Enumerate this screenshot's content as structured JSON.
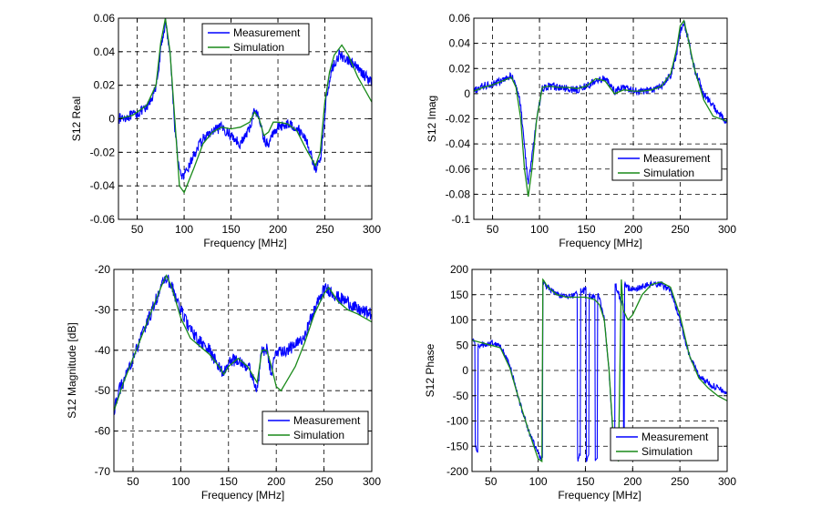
{
  "chart_data": [
    {
      "type": "line",
      "xlabel": "Frequency [MHz]",
      "ylabel": "S12 Real",
      "xlim": [
        30,
        300
      ],
      "ylim": [
        -0.06,
        0.06
      ],
      "xticks": [
        50,
        100,
        150,
        200,
        250,
        300
      ],
      "xtick_labels": [
        "50",
        "100",
        "150",
        "200",
        "250",
        "300"
      ],
      "yticks": [
        -0.06,
        -0.04,
        -0.02,
        0,
        0.02,
        0.04,
        0.06
      ],
      "ytick_labels": [
        "-0.06",
        "-0.04",
        "-0.02",
        "0",
        "0.02",
        "0.04",
        "0.06"
      ],
      "grid": true,
      "legend": "top-center",
      "series": [
        {
          "name": "Measurement",
          "color": "#0000ff",
          "noise": 0.003,
          "x": [
            30,
            45,
            60,
            70,
            75,
            80,
            85,
            90,
            95,
            100,
            110,
            120,
            130,
            140,
            150,
            160,
            170,
            175,
            180,
            185,
            190,
            195,
            200,
            210,
            220,
            230,
            240,
            245,
            248,
            252,
            258,
            265,
            275,
            285,
            300
          ],
          "y": [
            0.0,
            0.002,
            0.006,
            0.018,
            0.04,
            0.058,
            0.04,
            -0.005,
            -0.032,
            -0.035,
            -0.022,
            -0.012,
            -0.008,
            -0.005,
            -0.01,
            -0.015,
            -0.006,
            0.006,
            0.0,
            -0.012,
            -0.016,
            -0.008,
            -0.005,
            -0.003,
            -0.005,
            -0.012,
            -0.03,
            -0.025,
            -0.01,
            0.015,
            0.03,
            0.038,
            0.035,
            0.03,
            0.022
          ]
        },
        {
          "name": "Simulation",
          "color": "#1a8a1a",
          "x": [
            30,
            45,
            60,
            70,
            75,
            80,
            85,
            90,
            95,
            100,
            110,
            120,
            130,
            140,
            150,
            160,
            170,
            175,
            180,
            185,
            190,
            195,
            200,
            210,
            220,
            230,
            240,
            245,
            250,
            255,
            260,
            268,
            275,
            285,
            300
          ],
          "y": [
            0.0,
            0.002,
            0.008,
            0.02,
            0.045,
            0.06,
            0.04,
            0.0,
            -0.04,
            -0.044,
            -0.03,
            -0.015,
            -0.008,
            -0.005,
            -0.006,
            -0.005,
            -0.002,
            0.004,
            0.0,
            -0.01,
            -0.008,
            -0.002,
            -0.002,
            -0.003,
            -0.007,
            -0.018,
            -0.028,
            -0.02,
            0.01,
            0.028,
            0.038,
            0.044,
            0.038,
            0.025,
            0.01
          ]
        }
      ]
    },
    {
      "type": "line",
      "xlabel": "Frequency [MHz]",
      "ylabel": "S12 Imag",
      "xlim": [
        30,
        300
      ],
      "ylim": [
        -0.1,
        0.06
      ],
      "xticks": [
        50,
        100,
        150,
        200,
        250,
        300
      ],
      "xtick_labels": [
        "50",
        "100",
        "150",
        "200",
        "250",
        "300"
      ],
      "yticks": [
        -0.1,
        -0.08,
        -0.06,
        -0.04,
        -0.02,
        0,
        0.02,
        0.04,
        0.06
      ],
      "ytick_labels": [
        "-0.1",
        "-0.08",
        "-0.06",
        "-0.04",
        "-0.02",
        "0",
        "0.02",
        "0.04",
        "0.06"
      ],
      "grid": true,
      "legend": "bottom-right",
      "series": [
        {
          "name": "Measurement",
          "color": "#0000ff",
          "noise": 0.003,
          "x": [
            30,
            40,
            50,
            60,
            70,
            75,
            80,
            85,
            88,
            92,
            97,
            103,
            110,
            120,
            130,
            140,
            150,
            160,
            170,
            180,
            190,
            200,
            210,
            220,
            230,
            240,
            246,
            250,
            254,
            258,
            265,
            275,
            285,
            300
          ],
          "y": [
            0.002,
            0.006,
            0.008,
            0.01,
            0.014,
            0.008,
            -0.01,
            -0.05,
            -0.072,
            -0.05,
            -0.02,
            0.004,
            0.006,
            0.005,
            0.004,
            0.003,
            0.006,
            0.01,
            0.012,
            0.002,
            0.005,
            0.002,
            0.002,
            0.003,
            0.006,
            0.015,
            0.03,
            0.05,
            0.056,
            0.045,
            0.02,
            0.0,
            -0.01,
            -0.024
          ]
        },
        {
          "name": "Simulation",
          "color": "#1a8a1a",
          "x": [
            30,
            40,
            50,
            60,
            70,
            75,
            80,
            84,
            88,
            92,
            97,
            103,
            110,
            120,
            130,
            140,
            150,
            160,
            170,
            180,
            190,
            200,
            210,
            220,
            230,
            240,
            246,
            250,
            254,
            258,
            265,
            275,
            285,
            300
          ],
          "y": [
            0.002,
            0.005,
            0.007,
            0.01,
            0.013,
            0.005,
            -0.02,
            -0.06,
            -0.082,
            -0.06,
            -0.02,
            0.005,
            0.006,
            0.005,
            0.005,
            0.004,
            0.006,
            0.012,
            0.01,
            0.0,
            0.003,
            0.002,
            0.002,
            0.003,
            0.006,
            0.016,
            0.035,
            0.054,
            0.058,
            0.045,
            0.02,
            -0.005,
            -0.018,
            -0.022
          ]
        }
      ]
    },
    {
      "type": "line",
      "xlabel": "Frequency [MHz]",
      "ylabel": "S12 Magnitude [dB]",
      "xlim": [
        30,
        300
      ],
      "ylim": [
        -70,
        -20
      ],
      "xticks": [
        50,
        100,
        150,
        200,
        250,
        300
      ],
      "xtick_labels": [
        "50",
        "100",
        "150",
        "200",
        "250",
        "300"
      ],
      "yticks": [
        -70,
        -60,
        -50,
        -40,
        -30,
        -20
      ],
      "ytick_labels": [
        "-70",
        "-60",
        "-50",
        "-40",
        "-30",
        "-20"
      ],
      "grid": true,
      "legend": "bottom-right",
      "series": [
        {
          "name": "Measurement",
          "color": "#0000ff",
          "noise": 1.6,
          "x": [
            30,
            35,
            40,
            50,
            60,
            70,
            80,
            85,
            90,
            100,
            110,
            120,
            130,
            140,
            145,
            150,
            160,
            170,
            175,
            180,
            185,
            190,
            195,
            200,
            210,
            220,
            230,
            240,
            250,
            255,
            265,
            275,
            285,
            300
          ],
          "y": [
            -55,
            -50,
            -48,
            -42,
            -36,
            -30,
            -24,
            -22,
            -24,
            -30,
            -35,
            -38,
            -40,
            -44,
            -46,
            -43,
            -42,
            -44,
            -46,
            -50,
            -40,
            -40,
            -46,
            -40,
            -40,
            -39,
            -36,
            -30,
            -25,
            -25,
            -27,
            -28,
            -30,
            -31
          ]
        },
        {
          "name": "Simulation",
          "color": "#1a8a1a",
          "x": [
            30,
            40,
            50,
            60,
            70,
            80,
            85,
            90,
            100,
            110,
            120,
            130,
            140,
            145,
            150,
            160,
            170,
            175,
            180,
            185,
            190,
            195,
            200,
            205,
            210,
            220,
            230,
            240,
            250,
            255,
            265,
            275,
            285,
            300
          ],
          "y": [
            -55,
            -48,
            -42,
            -36,
            -30,
            -24,
            -21.5,
            -24,
            -32,
            -37,
            -39,
            -41,
            -44,
            -46,
            -44,
            -42,
            -44,
            -46,
            -48,
            -40,
            -40,
            -44,
            -49,
            -50,
            -48,
            -44,
            -38,
            -31,
            -26,
            -24.5,
            -28,
            -30,
            -31,
            -33
          ]
        }
      ]
    },
    {
      "type": "line",
      "xlabel": "Frequency [MHz]",
      "ylabel": "S12 Phase",
      "xlim": [
        30,
        300
      ],
      "ylim": [
        -200,
        200
      ],
      "xticks": [
        50,
        100,
        150,
        200,
        250,
        300
      ],
      "xtick_labels": [
        "50",
        "100",
        "150",
        "200",
        "250",
        "300"
      ],
      "yticks": [
        -200,
        -150,
        -100,
        -50,
        0,
        50,
        100,
        150,
        200
      ],
      "ytick_labels": [
        "-200",
        "-150",
        "-100",
        "-50",
        "0",
        "50",
        "100",
        "150",
        "200"
      ],
      "grid": true,
      "legend": "bottom-right",
      "series": [
        {
          "name": "Measurement",
          "color": "#0000ff",
          "noise": 6,
          "x": [
            30,
            33,
            34,
            36,
            37,
            40,
            50,
            60,
            70,
            80,
            90,
            100,
            104,
            106,
            107,
            110,
            120,
            130,
            140,
            143,
            144,
            146,
            147,
            150,
            152,
            153,
            155,
            156,
            160,
            161,
            162,
            164,
            165,
            170,
            175,
            180,
            181,
            182,
            185,
            190,
            191,
            192,
            195,
            200,
            210,
            220,
            230,
            240,
            250,
            260,
            270,
            280,
            290,
            300
          ],
          "y": [
            60,
            55,
            -150,
            -160,
            50,
            50,
            55,
            50,
            10,
            -60,
            -120,
            -165,
            -175,
            175,
            170,
            165,
            150,
            145,
            150,
            -175,
            -170,
            160,
            155,
            160,
            -175,
            -170,
            150,
            145,
            150,
            -175,
            -170,
            150,
            140,
            100,
            0,
            -150,
            -170,
            170,
            150,
            130,
            -165,
            170,
            165,
            160,
            165,
            170,
            170,
            160,
            100,
            30,
            -10,
            -25,
            -35,
            -45
          ]
        },
        {
          "name": "Simulation",
          "color": "#1a8a1a",
          "x": [
            30,
            40,
            50,
            60,
            70,
            80,
            90,
            100,
            104,
            105,
            106,
            110,
            120,
            130,
            140,
            150,
            160,
            165,
            170,
            175,
            180,
            185,
            188,
            190,
            195,
            200,
            210,
            220,
            230,
            240,
            250,
            260,
            270,
            280,
            290,
            300
          ],
          "y": [
            60,
            55,
            50,
            45,
            5,
            -60,
            -120,
            -175,
            -180,
            180,
            178,
            165,
            150,
            145,
            145,
            145,
            140,
            130,
            100,
            0,
            -150,
            -180,
            180,
            120,
            100,
            110,
            150,
            170,
            175,
            165,
            110,
            30,
            -15,
            -35,
            -50,
            -60
          ]
        }
      ]
    }
  ]
}
